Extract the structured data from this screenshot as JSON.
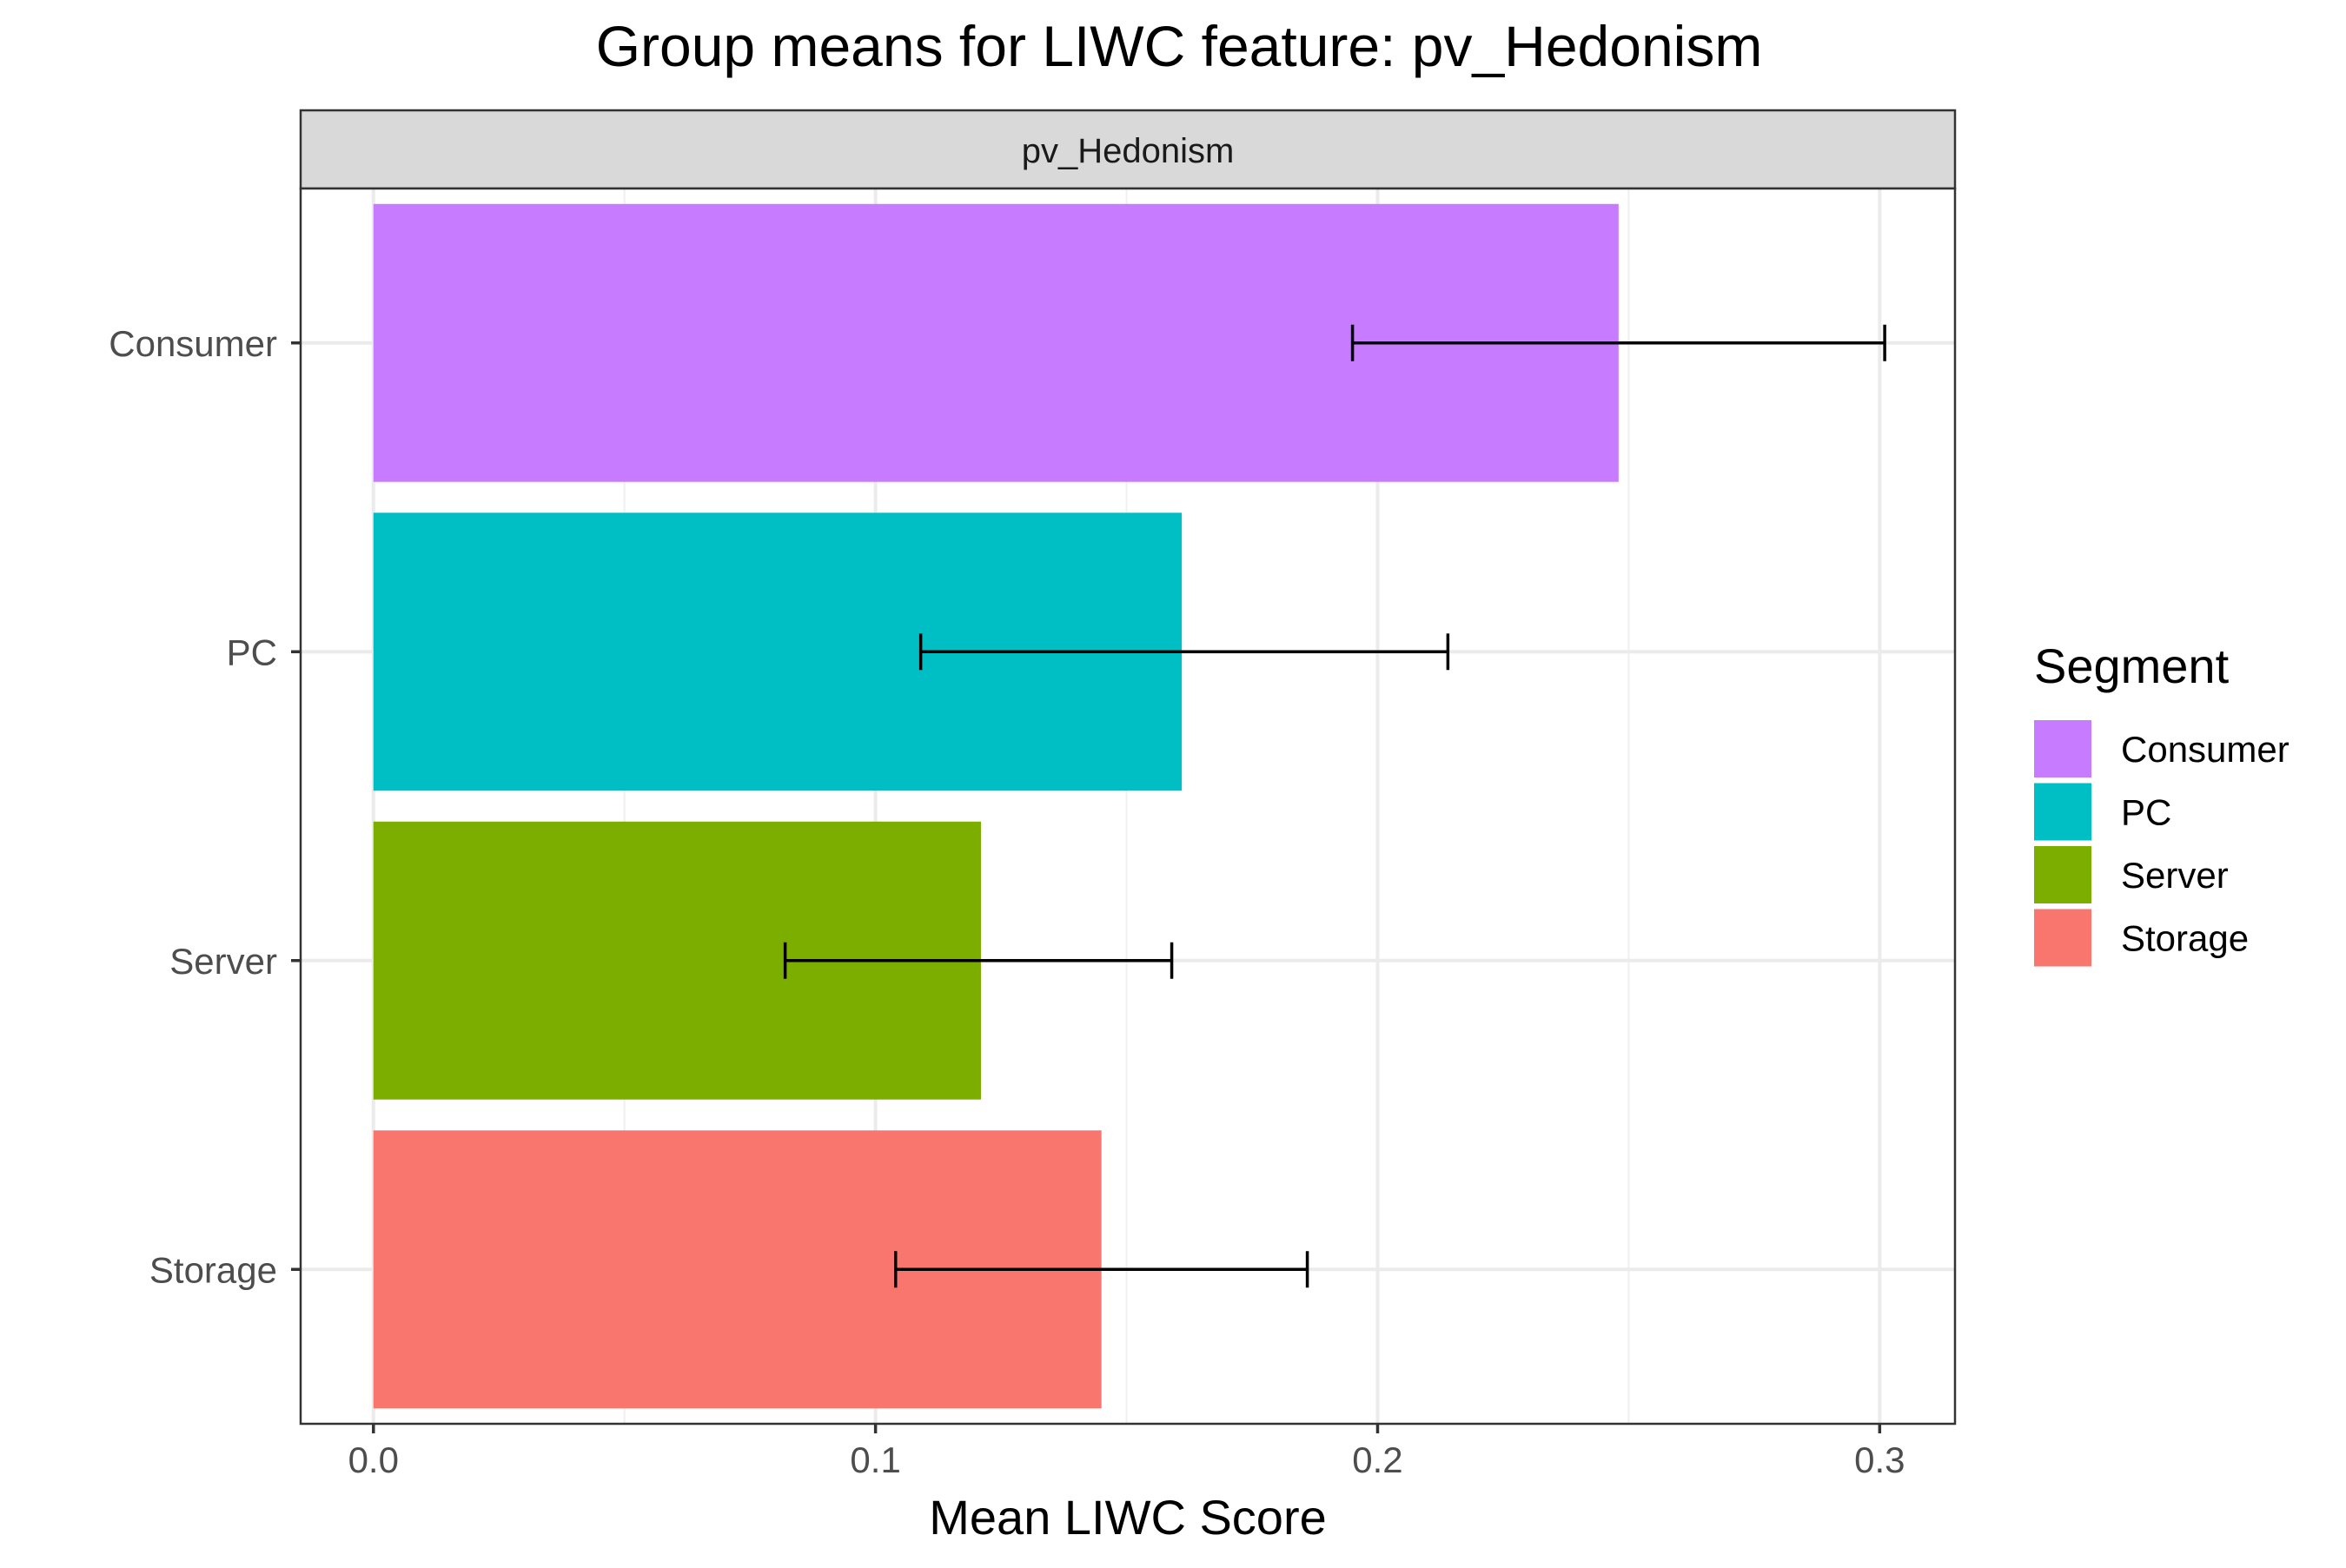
{
  "chart_data": {
    "type": "bar",
    "orientation": "horizontal",
    "title": "Group means for LIWC feature: pv_Hedonism",
    "facet_label": "pv_Hedonism",
    "xlabel": "Mean LIWC Score",
    "ylabel": "",
    "xlim": [
      -0.0145,
      0.315
    ],
    "x_ticks": [
      0.0,
      0.1,
      0.2,
      0.3
    ],
    "x_tick_labels": [
      "0.0",
      "0.1",
      "0.2",
      "0.3"
    ],
    "grid": true,
    "categories": [
      "Consumer",
      "PC",
      "Server",
      "Storage"
    ],
    "values": [
      0.248,
      0.161,
      0.121,
      0.145
    ],
    "error_low": [
      0.195,
      0.109,
      0.082,
      0.104
    ],
    "error_high": [
      0.301,
      0.214,
      0.159,
      0.186
    ],
    "colors": [
      "#C77CFF",
      "#00BFC4",
      "#7CAE00",
      "#F8766D"
    ],
    "legend": {
      "title": "Segment",
      "position": "right",
      "entries": [
        "Consumer",
        "PC",
        "Server",
        "Storage"
      ]
    }
  }
}
